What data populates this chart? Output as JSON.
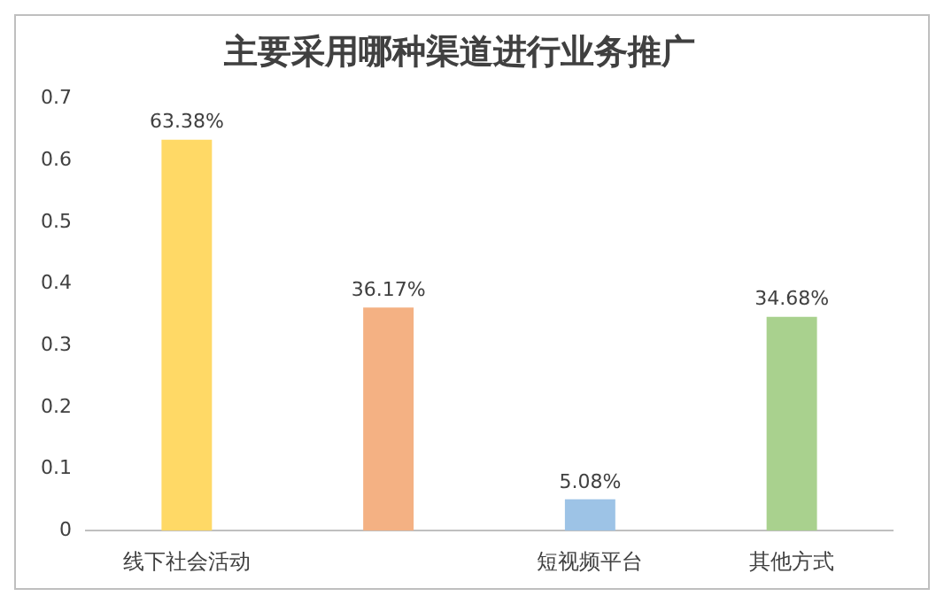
{
  "chart_data": {
    "type": "bar",
    "title": "主要采用哪种渠道进行业务推广",
    "categories": [
      "线下社会活动",
      null,
      "短视频平台",
      "其他方式"
    ],
    "values": [
      0.6338,
      0.3617,
      0.0508,
      0.3468
    ],
    "colors": [
      "#ffd966",
      "#f4b183",
      "#9dc3e6",
      "#a9d18e"
    ],
    "value_labels": [
      "63.38%",
      "36.17%",
      "5.08%",
      "34.68%"
    ],
    "ylim": [
      0,
      0.7
    ],
    "yticks": [
      0,
      0.1,
      0.2,
      0.3,
      0.4,
      0.5,
      0.6,
      0.7
    ],
    "grid": false,
    "legend": false
  }
}
